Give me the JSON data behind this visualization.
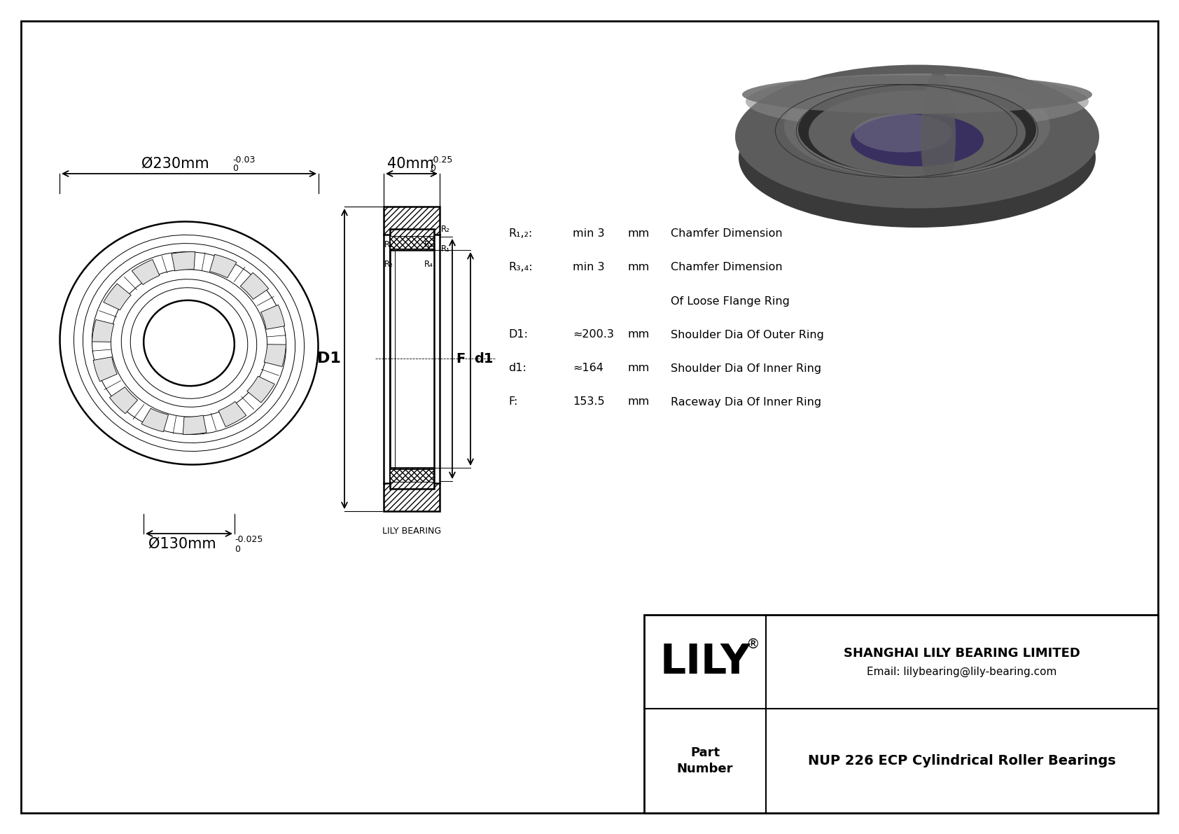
{
  "bg_color": "#ffffff",
  "line_color": "#000000",
  "dim_color": "#000000",
  "title": "NUP 226 ECP Cylindrical Roller Bearings",
  "company": "SHANGHAI LILY BEARING LIMITED",
  "email": "Email: lilybearing@lily-bearing.com",
  "part_label": "Part\nNumber",
  "lily_text": "LILY",
  "lily_registered": "®",
  "lily_bearing_label": "LILY BEARING",
  "dim_outer_main": "Ø230mm",
  "dim_outer_sup": "0",
  "dim_outer_tol": "-0.03",
  "dim_inner_main": "Ø130mm",
  "dim_inner_sup": "0",
  "dim_inner_tol": "-0.025",
  "dim_width_main": "40mm",
  "dim_width_sup": "0",
  "dim_width_tol": "-0.25",
  "label_D1": "D1",
  "label_d1": "d1",
  "label_F": "F",
  "specs": [
    [
      "R₁,₂:",
      "min 3",
      "mm",
      "Chamfer Dimension"
    ],
    [
      "R₃,₄:",
      "min 3",
      "mm",
      "Chamfer Dimension"
    ],
    [
      "",
      "",
      "",
      "Of Loose Flange Ring"
    ],
    [
      "D1:",
      "≈200.3",
      "mm",
      "Shoulder Dia Of Outer Ring"
    ],
    [
      "d1:",
      "≈164",
      "mm",
      "Shoulder Dia Of Inner Ring"
    ],
    [
      "F:",
      "153.5",
      "mm",
      "Raceway Dia Of Inner Ring"
    ]
  ],
  "photo_colors": {
    "outer_body": "#5c5c5c",
    "outer_rim": "#4a4a4a",
    "inner_face": "#696969",
    "inner_ring": "#606060",
    "bore_shadow": "#3a3060",
    "bore_light": "#7a7a8a",
    "highlight": "#8a8a8a",
    "shadow": "#3a3a3a",
    "groove": "#2a2a2a"
  }
}
